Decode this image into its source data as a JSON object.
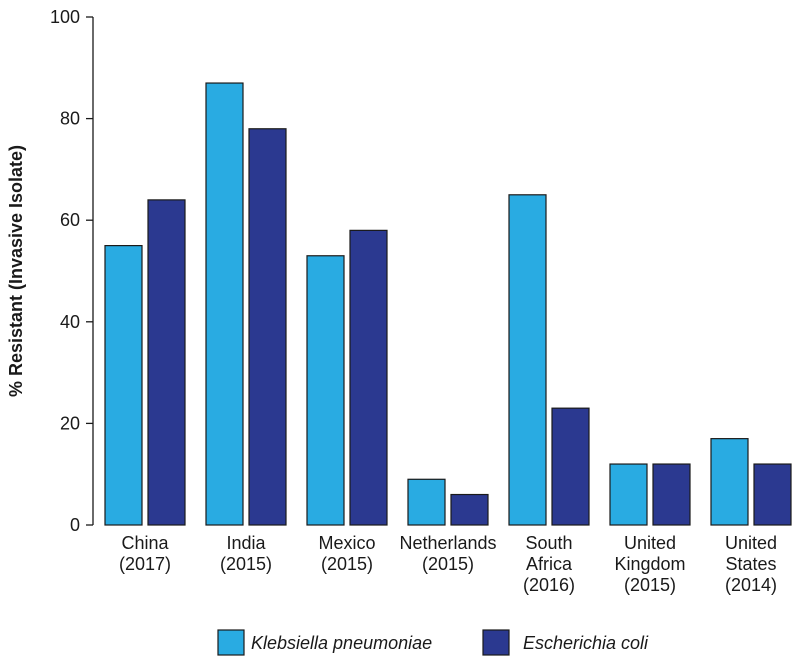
{
  "chart_data": {
    "type": "bar",
    "ylabel": "% Resistant (Invasive Isolate)",
    "ylim": [
      0,
      100
    ],
    "yticks": [
      "0",
      "20",
      "40",
      "60",
      "80",
      "100"
    ],
    "categories": [
      [
        "China",
        "(2017)"
      ],
      [
        "India",
        "(2015)"
      ],
      [
        "Mexico",
        "(2015)"
      ],
      [
        "Netherlands",
        "(2015)"
      ],
      [
        "South",
        "Africa",
        "(2016)"
      ],
      [
        "United",
        "Kingdom",
        "(2015)"
      ],
      [
        "United",
        "States",
        "(2014)"
      ]
    ],
    "series": [
      {
        "name": "Klebsiella pneumoniae",
        "color": "#29abe2",
        "values": [
          55,
          87,
          53,
          9,
          65,
          12,
          17
        ]
      },
      {
        "name": "Escherichia coli",
        "color": "#2b3990",
        "values": [
          64,
          78,
          58,
          6,
          23,
          12,
          12
        ]
      }
    ],
    "legend_position": "bottom"
  }
}
